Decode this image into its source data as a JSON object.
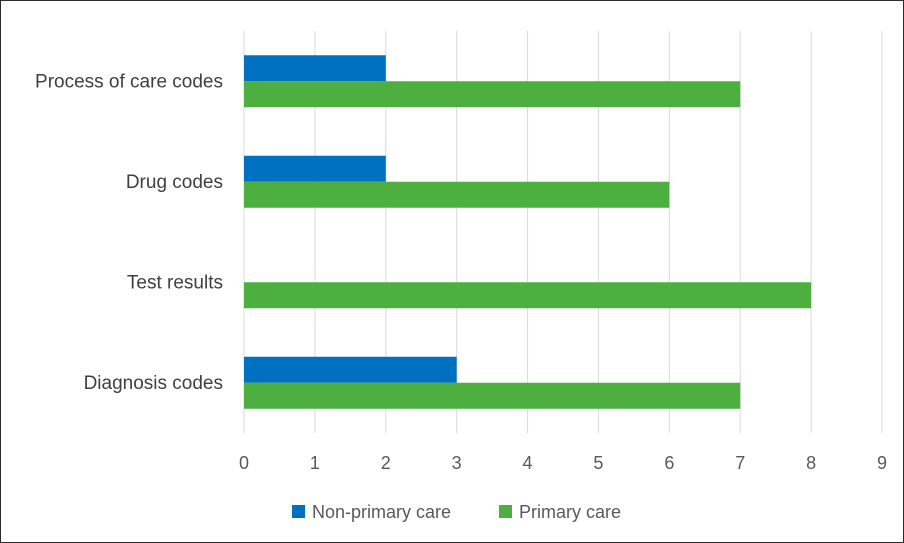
{
  "chart_data": {
    "type": "bar",
    "orientation": "horizontal",
    "categories": [
      "Process of care codes",
      "Drug codes",
      "Test results",
      "Diagnosis codes"
    ],
    "series": [
      {
        "name": "Non-primary care",
        "values": [
          2,
          2,
          0,
          3
        ],
        "color": "#0070C0"
      },
      {
        "name": "Primary care",
        "values": [
          7,
          6,
          8,
          7
        ],
        "color": "#4CAF3F"
      }
    ],
    "xlim": [
      0,
      9
    ],
    "xticks": [
      "0",
      "1",
      "2",
      "3",
      "4",
      "5",
      "6",
      "7",
      "8",
      "9"
    ],
    "grid": true,
    "legend_position": "bottom"
  }
}
